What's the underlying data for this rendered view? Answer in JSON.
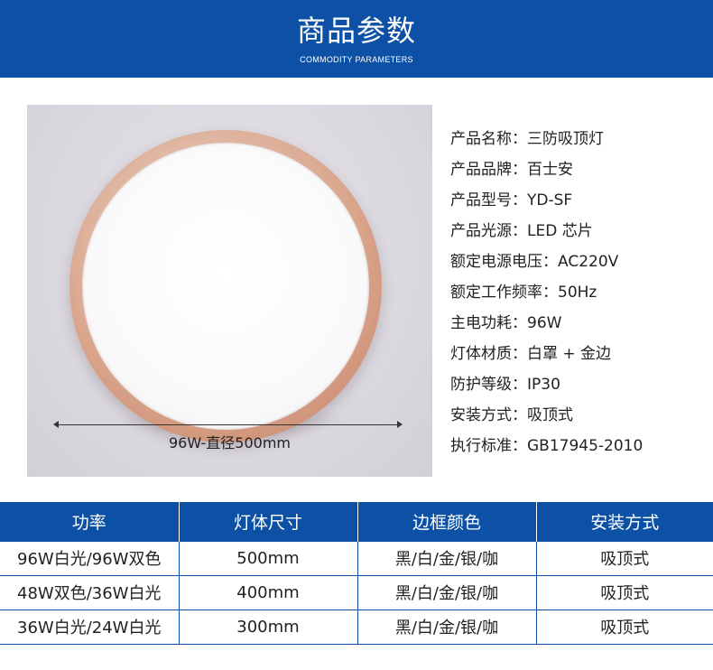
{
  "header": {
    "title": "商品参数",
    "subtitle": "COMMODITY PARAMETERS"
  },
  "product_image": {
    "dimension_label": "96W-直径500mm"
  },
  "params": [
    {
      "label": "产品名称：",
      "value": "三防吸顶灯"
    },
    {
      "label": "产品品牌：",
      "value": "百士安"
    },
    {
      "label": "产品型号：",
      "value": "YD-SF"
    },
    {
      "label": "产品光源：",
      "value": "LED 芯片"
    },
    {
      "label": "额定电源电压：",
      "value": "AC220V"
    },
    {
      "label": "额定工作频率：",
      "value": "50Hz"
    },
    {
      "label": "主电功耗：",
      "value": "96W"
    },
    {
      "label": "灯体材质：",
      "value": "白罩 + 金边"
    },
    {
      "label": "防护等级：",
      "value": "IP30"
    },
    {
      "label": "安装方式：",
      "value": "吸顶式"
    },
    {
      "label": "执行标准：",
      "value": "GB17945-2010"
    }
  ],
  "table": {
    "headers": [
      "功率",
      "灯体尺寸",
      "边框颜色",
      "安装方式"
    ],
    "rows": [
      [
        "96W白光/96W双色",
        "500mm",
        "黑/白/金/银/咖",
        "吸顶式"
      ],
      [
        "48W双色/36W白光",
        "400mm",
        "黑/白/金/银/咖",
        "吸顶式"
      ],
      [
        "36W白光/24W白光",
        "300mm",
        "黑/白/金/银/咖",
        "吸顶式"
      ]
    ]
  },
  "colors": {
    "brand_blue": "#0d51a7"
  }
}
